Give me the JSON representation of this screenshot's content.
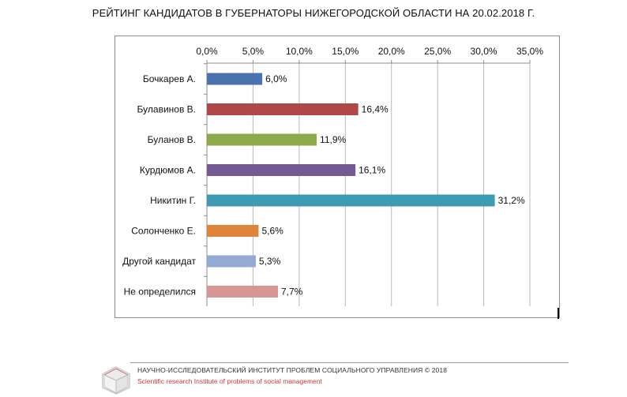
{
  "title": "РЕЙТИНГ КАНДИДАТОВ В ГУБЕРНАТОРЫ НИЖЕГОРОДСКОЙ ОБЛАСТИ НА 20.02.2018  Г.",
  "chart_data": {
    "type": "bar",
    "orientation": "horizontal",
    "title": "РЕЙТИНГ КАНДИДАТОВ В ГУБЕРНАТОРЫ НИЖЕГОРОДСКОЙ ОБЛАСТИ НА 20.02.2018  Г.",
    "categories": [
      "Бочкарев А.",
      "Булавинов В.",
      "Буланов В.",
      "Курдюмов А.",
      "Никитин Г.",
      "Солонченко Е.",
      "Другой кандидат",
      "Не определился"
    ],
    "values": [
      6.0,
      16.4,
      11.9,
      16.1,
      31.2,
      5.6,
      5.3,
      7.7
    ],
    "data_labels": [
      "6,0%",
      "16,4%",
      "11,9%",
      "16,1%",
      "31,2%",
      "5,6%",
      "5,3%",
      "7,7%"
    ],
    "colors": [
      "#4a72ae",
      "#b04748",
      "#8caa4c",
      "#745a93",
      "#3d9bb2",
      "#de8539",
      "#93aad4",
      "#d79595"
    ],
    "xlim": [
      0,
      35
    ],
    "x_ticks": [
      "0,0%",
      "5,0%",
      "10,0%",
      "15,0%",
      "20,0%",
      "25,0%",
      "30,0%",
      "35,0%"
    ],
    "x_axis_position": "top",
    "grid": true,
    "xlabel": "",
    "ylabel": ""
  },
  "footer": {
    "org_ru": "НАУЧНО-ИССЛЕДОВАТЕЛЬСКИЙ ИНСТИТУТ ПРОБЛЕМ СОЦИАЛЬНОГО УПРАВЛЕНИЯ  © 2018",
    "org_en": "Scientific research Institute of problems of social management",
    "logo_icon": "cube-logo-icon",
    "accent_color": "#d0383a"
  }
}
